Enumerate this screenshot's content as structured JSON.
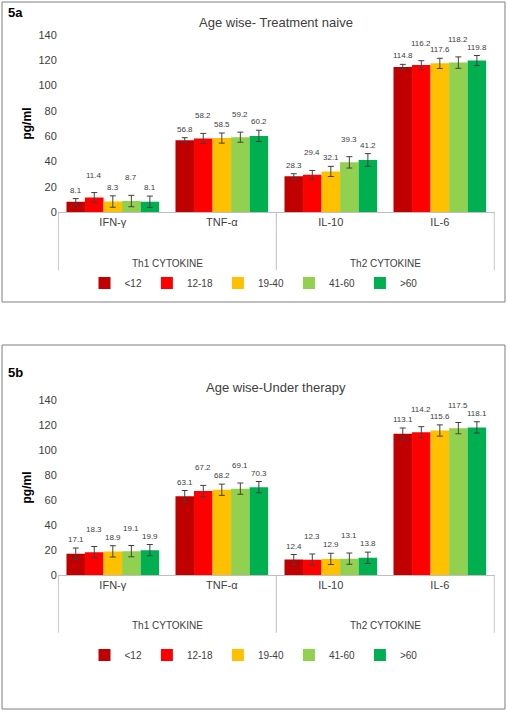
{
  "chart_data": [
    {
      "type": "bar",
      "label": "5a",
      "title": "Age wise- Treatment naive",
      "y_label": "pg/ml",
      "categories": [
        "IFN-γ",
        "TNF-α",
        "IL-10",
        "IL-6"
      ],
      "groups": [
        {
          "label": "Th1 CYTOKINE",
          "categories": [
            "IFN-γ",
            "TNF-α"
          ]
        },
        {
          "label": "Th2 CYTOKINE",
          "categories": [
            "IL-10",
            "IL-6"
          ]
        }
      ],
      "series": [
        {
          "name": "<12",
          "color": "#c00000",
          "values": [
            8.1,
            56.8,
            28.3,
            114.8
          ],
          "errors": [
            2.5,
            2,
            2,
            2
          ]
        },
        {
          "name": "12-18",
          "color": "#ff0000",
          "values": [
            11.4,
            58.2,
            29.4,
            116.2
          ],
          "errors": [
            4,
            4,
            3.5,
            3.5
          ]
        },
        {
          "name": "19-40",
          "color": "#ffc000",
          "values": [
            8.3,
            58.5,
            32.1,
            117.6
          ],
          "errors": [
            4.5,
            4,
            4,
            4
          ]
        },
        {
          "name": "41-60",
          "color": "#92d050",
          "values": [
            8.7,
            59.2,
            39.3,
            118.2
          ],
          "errors": [
            4.5,
            4,
            4.5,
            4.5
          ]
        },
        {
          "name": ">60",
          "color": "#00b050",
          "values": [
            8.1,
            60.2,
            41.2,
            119.8
          ],
          "errors": [
            4.5,
            4.5,
            5,
            4
          ]
        }
      ],
      "ylim": [
        0,
        140
      ],
      "yticks": [
        0,
        20,
        40,
        60,
        80,
        100,
        120,
        140
      ],
      "grid": false,
      "data_labels": true,
      "legend": "bottom"
    },
    {
      "type": "bar",
      "label": "5b",
      "title": "Age wise-Under therapy",
      "y_label": "pg/ml",
      "categories": [
        "IFN-γ",
        "TNF-α",
        "IL-10",
        "IL-6"
      ],
      "groups": [
        {
          "label": "Th1 CYTOKINE",
          "categories": [
            "IFN-γ",
            "TNF-α"
          ]
        },
        {
          "label": "Th2 CYTOKINE",
          "categories": [
            "IL-10",
            "IL-6"
          ]
        }
      ],
      "series": [
        {
          "name": "<12",
          "color": "#c00000",
          "values": [
            17.1,
            63.1,
            12.4,
            113.1
          ],
          "errors": [
            4.5,
            4.5,
            4,
            4.5
          ]
        },
        {
          "name": "12-18",
          "color": "#ff0000",
          "values": [
            18.3,
            67.2,
            12.3,
            114.2
          ],
          "errors": [
            4.5,
            4.5,
            4.5,
            4.5
          ]
        },
        {
          "name": "19-40",
          "color": "#ffc000",
          "values": [
            18.9,
            68.2,
            12.9,
            115.6
          ],
          "errors": [
            4.5,
            4.5,
            4.5,
            4.5
          ]
        },
        {
          "name": "41-60",
          "color": "#92d050",
          "values": [
            19.1,
            69.1,
            13.1,
            117.5
          ],
          "errors": [
            4.5,
            4.5,
            4.5,
            4.5
          ]
        },
        {
          "name": ">60",
          "color": "#00b050",
          "values": [
            19.9,
            70.3,
            13.8,
            118.1
          ],
          "errors": [
            4.5,
            4.5,
            4.5,
            4.5
          ]
        }
      ],
      "ylim": [
        0,
        140
      ],
      "yticks": [
        0,
        20,
        40,
        60,
        80,
        100,
        120,
        140
      ],
      "grid": false,
      "data_labels": true,
      "legend": "bottom"
    }
  ]
}
